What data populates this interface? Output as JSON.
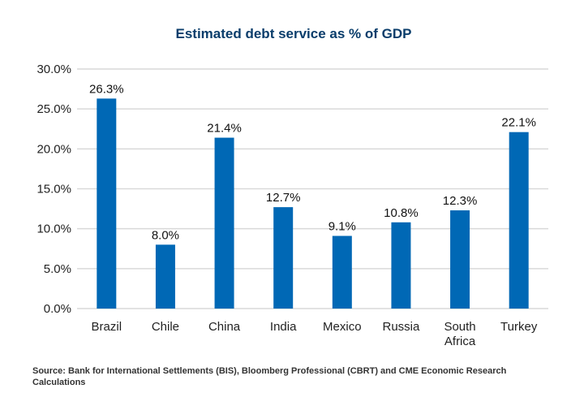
{
  "chart_data": {
    "type": "bar",
    "title": "Estimated debt service as % of GDP",
    "xlabel": "",
    "ylabel": "",
    "categories": [
      "Brazil",
      "Chile",
      "China",
      "India",
      "Mexico",
      "Russia",
      "South Africa",
      "Turkey"
    ],
    "category_lines": [
      [
        "Brazil"
      ],
      [
        "Chile"
      ],
      [
        "China"
      ],
      [
        "India"
      ],
      [
        "Mexico"
      ],
      [
        "Russia"
      ],
      [
        "South",
        "Africa"
      ],
      [
        "Turkey"
      ]
    ],
    "values": [
      26.3,
      8.0,
      21.4,
      12.7,
      9.1,
      10.8,
      12.3,
      22.1
    ],
    "data_labels": [
      "26.3%",
      "8.0%",
      "21.4%",
      "12.7%",
      "9.1%",
      "10.8%",
      "12.3%",
      "22.1%"
    ],
    "ylim": [
      0,
      30
    ],
    "yticks": [
      0,
      5,
      10,
      15,
      20,
      25,
      30
    ],
    "ytick_labels": [
      "0.0%",
      "5.0%",
      "10.0%",
      "15.0%",
      "20.0%",
      "25.0%",
      "30.0%"
    ],
    "grid": true,
    "legend": "none",
    "bar_color": "#0068b5"
  },
  "source": "Source: Bank for International Settlements (BIS), Bloomberg Professional (CBRT) and CME Economic Research Calculations"
}
